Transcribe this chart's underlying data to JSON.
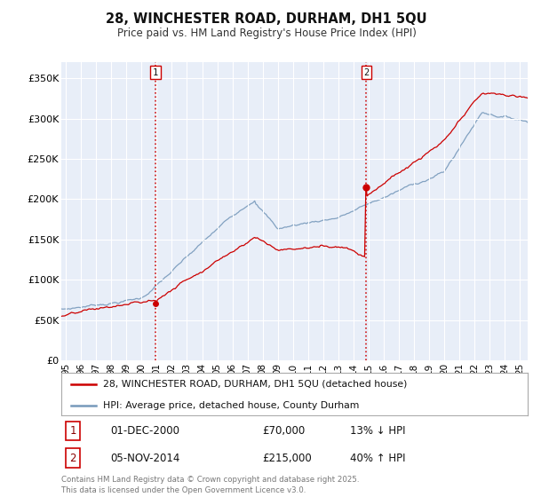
{
  "title": "28, WINCHESTER ROAD, DURHAM, DH1 5QU",
  "subtitle": "Price paid vs. HM Land Registry's House Price Index (HPI)",
  "ylabel_ticks": [
    "£0",
    "£50K",
    "£100K",
    "£150K",
    "£200K",
    "£250K",
    "£300K",
    "£350K"
  ],
  "ytick_values": [
    0,
    50000,
    100000,
    150000,
    200000,
    250000,
    300000,
    350000
  ],
  "ylim": [
    0,
    370000
  ],
  "xlim_start": 1994.7,
  "xlim_end": 2025.5,
  "sale1_date": 2000.92,
  "sale1_price": 70000,
  "sale1_label": "1",
  "sale1_text": "01-DEC-2000",
  "sale1_amount": "£70,000",
  "sale1_pct": "13% ↓ HPI",
  "sale2_date": 2014.84,
  "sale2_price": 215000,
  "sale2_label": "2",
  "sale2_text": "05-NOV-2014",
  "sale2_amount": "£215,000",
  "sale2_pct": "40% ↑ HPI",
  "red_color": "#cc0000",
  "blue_color": "#7799bb",
  "plot_bg_color": "#e8eef8",
  "background_color": "#ffffff",
  "grid_color": "#ffffff",
  "legend_label_red": "28, WINCHESTER ROAD, DURHAM, DH1 5QU (detached house)",
  "legend_label_blue": "HPI: Average price, detached house, County Durham",
  "footnote": "Contains HM Land Registry data © Crown copyright and database right 2025.\nThis data is licensed under the Open Government Licence v3.0.",
  "xtick_years": [
    1995,
    1996,
    1997,
    1998,
    1999,
    2000,
    2001,
    2002,
    2003,
    2004,
    2005,
    2006,
    2007,
    2008,
    2009,
    2010,
    2011,
    2012,
    2013,
    2014,
    2015,
    2016,
    2017,
    2018,
    2019,
    2020,
    2021,
    2022,
    2023,
    2024,
    2025
  ]
}
